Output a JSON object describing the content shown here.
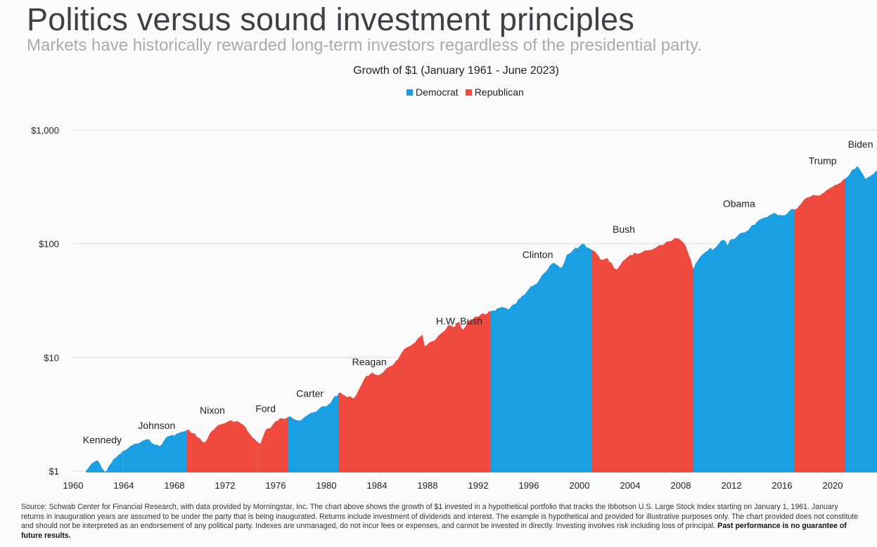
{
  "header": {
    "title": "Politics versus sound investment principles",
    "subtitle": "Markets have historically rewarded long-term investors regardless of the presidential party."
  },
  "colors": {
    "democrat": "#1a9fe3",
    "republican": "#f04a3e",
    "grid": "#dcdcdc"
  },
  "chart_data": {
    "type": "area",
    "title": "Growth of $1 (January 1961 - June 2023)",
    "legend": [
      {
        "name": "Democrat",
        "color": "#1a9fe3"
      },
      {
        "name": "Republican",
        "color": "#f04a3e"
      }
    ],
    "legend_position": "top-center",
    "y_scale": "log",
    "ylim": [
      1,
      1000
    ],
    "y_ticks": [
      {
        "value": 1,
        "label": "$1"
      },
      {
        "value": 10,
        "label": "$10"
      },
      {
        "value": 100,
        "label": "$100"
      },
      {
        "value": 1000,
        "label": "$1,000"
      }
    ],
    "x_ticks": [
      "1960",
      "1964",
      "1968",
      "1972",
      "1976",
      "1980",
      "1984",
      "1988",
      "1992",
      "1996",
      "2000",
      "2004",
      "2008",
      "2012",
      "2016",
      "2020"
    ],
    "xlim": [
      1960,
      2023.5
    ],
    "grid": true,
    "series": [
      {
        "name": "Kennedy",
        "party": "democrat",
        "start": 1961.0,
        "end": 1963.9,
        "x": [
          1961.0,
          1961.5,
          1962.0,
          1962.3,
          1962.5,
          1962.8,
          1963.2,
          1963.6,
          1963.9
        ],
        "y": [
          1.0,
          1.18,
          1.22,
          1.05,
          0.98,
          1.1,
          1.28,
          1.4,
          1.5
        ]
      },
      {
        "name": "Johnson",
        "party": "democrat",
        "start": 1963.9,
        "end": 1969.0,
        "x": [
          1963.9,
          1964.5,
          1965.0,
          1965.5,
          1966.0,
          1966.5,
          1966.8,
          1967.3,
          1968.0,
          1968.5,
          1969.0
        ],
        "y": [
          1.5,
          1.65,
          1.75,
          1.85,
          1.9,
          1.7,
          1.65,
          1.95,
          2.05,
          2.2,
          2.3
        ]
      },
      {
        "name": "Nixon",
        "party": "republican",
        "start": 1969.0,
        "end": 1974.6,
        "x": [
          1969.0,
          1969.6,
          1970.0,
          1970.4,
          1970.8,
          1971.3,
          1972.0,
          1972.5,
          1973.0,
          1973.6,
          1974.0,
          1974.6
        ],
        "y": [
          2.3,
          2.15,
          1.95,
          1.78,
          2.15,
          2.45,
          2.65,
          2.8,
          2.75,
          2.45,
          2.1,
          1.8
        ]
      },
      {
        "name": "Ford",
        "party": "republican",
        "start": 1974.6,
        "end": 1977.0,
        "x": [
          1974.6,
          1974.8,
          1975.2,
          1975.6,
          1976.0,
          1976.5,
          1977.0
        ],
        "y": [
          1.8,
          1.75,
          2.3,
          2.4,
          2.75,
          2.9,
          3.0
        ]
      },
      {
        "name": "Carter",
        "party": "democrat",
        "start": 1977.0,
        "end": 1981.0,
        "x": [
          1977.0,
          1977.5,
          1978.0,
          1978.5,
          1979.0,
          1979.5,
          1980.0,
          1980.5,
          1981.0
        ],
        "y": [
          3.0,
          2.85,
          2.8,
          3.1,
          3.3,
          3.6,
          3.7,
          4.3,
          4.9
        ]
      },
      {
        "name": "Reagan",
        "party": "republican",
        "start": 1981.0,
        "end": 1989.0,
        "x": [
          1981.0,
          1981.6,
          1982.2,
          1982.6,
          1983.0,
          1983.5,
          1984.0,
          1984.5,
          1985.0,
          1985.5,
          1986.0,
          1986.5,
          1987.0,
          1987.6,
          1987.8,
          1988.3,
          1989.0
        ],
        "y": [
          4.9,
          4.5,
          4.4,
          5.3,
          6.5,
          7.2,
          7.0,
          7.4,
          8.3,
          9.3,
          11.2,
          12.5,
          13.5,
          15.8,
          12.5,
          13.8,
          16.0
        ]
      },
      {
        "name": "H.W. Bush",
        "party": "republican",
        "start": 1989.0,
        "end": 1993.0,
        "x": [
          1989.0,
          1989.6,
          1990.0,
          1990.5,
          1990.8,
          1991.2,
          1991.8,
          1992.5,
          1993.0
        ],
        "y": [
          16.0,
          19.0,
          18.5,
          20.5,
          17.5,
          21.0,
          23.0,
          24.0,
          25.5
        ]
      },
      {
        "name": "Clinton",
        "party": "democrat",
        "start": 1993.0,
        "end": 2001.0,
        "x": [
          1993.0,
          1993.5,
          1994.0,
          1994.5,
          1995.0,
          1995.5,
          1996.0,
          1996.5,
          1997.0,
          1997.5,
          1998.0,
          1998.6,
          1999.0,
          1999.5,
          2000.0,
          2000.4,
          2000.7,
          2001.0
        ],
        "y": [
          25.5,
          27.0,
          27.5,
          27.0,
          30.0,
          35.0,
          40.0,
          44.0,
          52.0,
          60.0,
          68.0,
          62.0,
          80.0,
          88.0,
          95.0,
          99.0,
          92.0,
          88.0
        ]
      },
      {
        "name": "Bush",
        "party": "republican",
        "start": 2001.0,
        "end": 2009.0,
        "x": [
          2001.0,
          2001.5,
          2001.8,
          2002.2,
          2002.7,
          2003.0,
          2003.4,
          2004.0,
          2004.5,
          2005.0,
          2005.5,
          2006.0,
          2006.5,
          2007.0,
          2007.5,
          2007.9,
          2008.4,
          2008.8,
          2009.0
        ],
        "y": [
          88.0,
          78.0,
          72.0,
          75.0,
          62.0,
          60.0,
          70.0,
          80.0,
          82.0,
          85.0,
          88.0,
          92.0,
          97.0,
          105.0,
          112.0,
          110.0,
          95.0,
          72.0,
          60.0
        ]
      },
      {
        "name": "Obama",
        "party": "democrat",
        "start": 2009.0,
        "end": 2017.0,
        "x": [
          2009.0,
          2009.3,
          2009.8,
          2010.3,
          2010.5,
          2011.0,
          2011.4,
          2011.7,
          2012.0,
          2012.5,
          2013.0,
          2013.5,
          2014.0,
          2014.5,
          2015.0,
          2015.5,
          2016.0,
          2016.5,
          2017.0
        ],
        "y": [
          60.0,
          70.0,
          82.0,
          92.0,
          88.0,
          100.0,
          108.0,
          96.0,
          110.0,
          118.0,
          125.0,
          140.0,
          155.0,
          168.0,
          178.0,
          185.0,
          178.0,
          190.0,
          200.0
        ]
      },
      {
        "name": "Trump",
        "party": "republican",
        "start": 2017.0,
        "end": 2021.0,
        "x": [
          2017.0,
          2017.5,
          2018.0,
          2018.5,
          2019.0,
          2019.3,
          2019.8,
          2020.2,
          2020.5,
          2021.0
        ],
        "y": [
          200.0,
          225.0,
          255.0,
          270.0,
          265.0,
          280.0,
          310.0,
          330.0,
          340.0,
          375.0
        ]
      },
      {
        "name": "Biden",
        "party": "democrat",
        "start": 2021.0,
        "end": 2023.5,
        "x": [
          2021.0,
          2021.4,
          2021.9,
          2022.2,
          2022.6,
          2022.9,
          2023.2,
          2023.5
        ],
        "y": [
          375.0,
          420.0,
          480.0,
          440.0,
          370.0,
          390.0,
          410.0,
          440.0
        ]
      }
    ]
  },
  "footnote": {
    "text": "Source: Schwab Center for Financial Research, with data provided by Morningstar, Inc. The chart above shows the growth of $1 invested in a hypothetical portfolio that tracks the Ibbotson U.S. Large Stock Index starting on January 1, 1961. January returns in inauguration years are assumed to be under the party that is being inaugurated. Returns include investment of dividends and interest. The example is hypothetical and provided for illustrative purposes only. The chart provided does not constitute and should not be interpreted as an endorsement of any political party. Indexes are unmanaged, do not incur fees or expenses, and cannot be invested in directly. Investing involves risk including loss of principal.",
    "bold": "Past performance is no guarantee of future results."
  }
}
